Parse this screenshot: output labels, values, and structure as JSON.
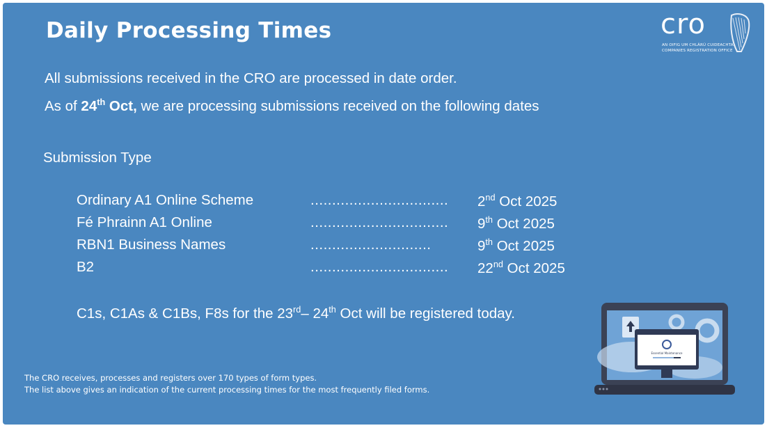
{
  "header": {
    "title": "Daily Processing Times"
  },
  "logo": {
    "text": "CRO",
    "line1": "AN OIFIG UM CHLÁRÚ CUIDEACHTAÍ",
    "line2": "COMPANIES REGISTRATION OFFICE"
  },
  "intro": {
    "line1": "All submissions received in the CRO are processed in date order.",
    "line2_pre": "As of ",
    "line2_bold": "24",
    "line2_bold_sup": "th",
    "line2_bold_post": " Oct,",
    "line2_post": " we are processing submissions received on the following dates"
  },
  "section_label": "Submission Type",
  "rows": [
    {
      "name": "Ordinary A1 Online Scheme",
      "dots": "................................",
      "day": "2",
      "sup": "nd",
      "rest": " Oct 2025"
    },
    {
      "name": "Fé Phrainn A1 Online",
      "dots": "................................",
      "day": "9",
      "sup": "th",
      "rest": " Oct 2025"
    },
    {
      "name": "RBN1 Business Names",
      "dots": "............................",
      "day": "9",
      "sup": "th",
      "rest": " Oct 2025"
    },
    {
      "name": "B2",
      "dots": "................................",
      "day": "22",
      "sup": "nd",
      "rest": " Oct 2025"
    }
  ],
  "c_line": {
    "a": "C1s, C1As & C1Bs, F8s for the 23",
    "a_sup": "rd",
    "b": "– 24",
    "b_sup": "th",
    "c": " Oct will be registered today."
  },
  "footer": {
    "line1": "The CRO receives, processes and registers over 170 types of form types.",
    "line2": "The list above gives an indication of the current processing times for the most frequently filed forms."
  },
  "illustration": {
    "screen_text": "Essential Maintenance"
  },
  "colors": {
    "background": "#4a87c0",
    "text": "#ffffff"
  }
}
